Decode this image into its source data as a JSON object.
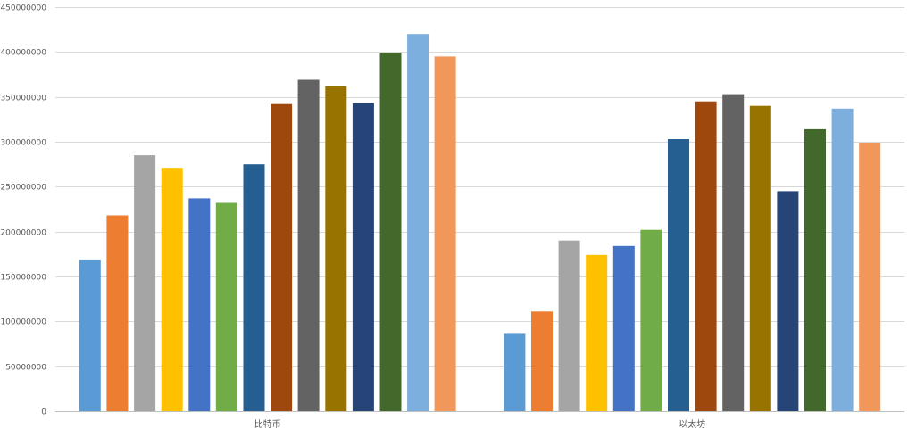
{
  "chart_data": {
    "type": "bar",
    "categories": [
      "比特币",
      "以太坊"
    ],
    "ylim": [
      0,
      450000000
    ],
    "yticks": [
      0,
      50000000,
      100000000,
      150000000,
      200000000,
      250000000,
      300000000,
      350000000,
      400000000,
      450000000
    ],
    "ytick_labels": [
      "0",
      "50000000",
      "100000000",
      "150000000",
      "200000000",
      "250000000",
      "300000000",
      "350000000",
      "400000000",
      "450000000"
    ],
    "grid": true,
    "legend": "none",
    "series": [
      {
        "color": "#5b9bd5",
        "values": [
          168000000,
          86000000
        ]
      },
      {
        "color": "#ed7d31",
        "values": [
          218000000,
          111000000
        ]
      },
      {
        "color": "#a5a5a5",
        "values": [
          285000000,
          190000000
        ]
      },
      {
        "color": "#ffc000",
        "values": [
          271000000,
          174000000
        ]
      },
      {
        "color": "#4472c4",
        "values": [
          237000000,
          184000000
        ]
      },
      {
        "color": "#70ad47",
        "values": [
          232000000,
          202000000
        ]
      },
      {
        "color": "#255e91",
        "values": [
          275000000,
          303000000
        ]
      },
      {
        "color": "#9e480e",
        "values": [
          342000000,
          345000000
        ]
      },
      {
        "color": "#636363",
        "values": [
          369000000,
          353000000
        ]
      },
      {
        "color": "#997300",
        "values": [
          362000000,
          340000000
        ]
      },
      {
        "color": "#264478",
        "values": [
          343000000,
          245000000
        ]
      },
      {
        "color": "#43682b",
        "values": [
          399000000,
          314000000
        ]
      },
      {
        "color": "#7cafdd",
        "values": [
          420000000,
          337000000
        ]
      },
      {
        "color": "#f1975a",
        "values": [
          395000000,
          299000000
        ]
      }
    ]
  }
}
